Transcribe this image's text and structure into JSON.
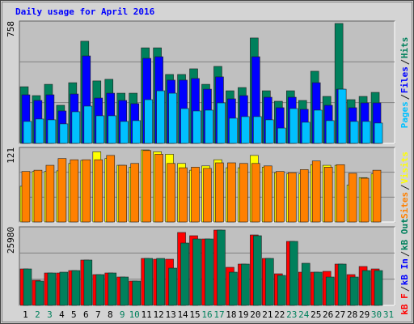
{
  "chart_data": [
    {
      "type": "bar",
      "title": "Daily usage for April 2016",
      "title_color": "#0000ff",
      "ylim": [
        0,
        758
      ],
      "yticks": [
        758
      ],
      "grid": true,
      "legend_order": "reverse",
      "series": [
        {
          "name": "Hits",
          "color": "#00805c",
          "values": [
            351,
            296,
            366,
            236,
            376,
            633,
            387,
            397,
            311,
            311,
            592,
            592,
            427,
            427,
            462,
            366,
            477,
            326,
            346,
            653,
            326,
            261,
            326,
            266,
            447,
            291,
            743,
            271,
            291,
            316,
            null
          ]
        },
        {
          "name": "Files",
          "color": "#0000ff",
          "values": [
            301,
            266,
            301,
            201,
            306,
            542,
            281,
            311,
            266,
            246,
            527,
            537,
            392,
            392,
            402,
            336,
            412,
            276,
            296,
            537,
            286,
            221,
            286,
            211,
            376,
            236,
            336,
            221,
            251,
            251,
            null
          ]
        },
        {
          "name": "Pages",
          "color": "#00c0ff",
          "values": [
            136,
            151,
            146,
            121,
            196,
            231,
            171,
            171,
            136,
            141,
            271,
            326,
            311,
            216,
            201,
            206,
            251,
            156,
            166,
            166,
            146,
            95,
            216,
            131,
            206,
            141,
            336,
            136,
            136,
            126,
            null
          ]
        }
      ]
    },
    {
      "type": "bar",
      "ylim": [
        0,
        121
      ],
      "yticks": [
        121
      ],
      "grid": true,
      "legend_order": "reverse",
      "series": [
        {
          "name": "Visits",
          "color": "#ffff00",
          "values": [
            58,
            82,
            82,
            83,
            95,
            100,
            114,
            103,
            92,
            89,
            117,
            114,
            110,
            95,
            84,
            91,
            101,
            88,
            88,
            108,
            89,
            80,
            78,
            78,
            93,
            92,
            92,
            60,
            72,
            78,
            null
          ]
        },
        {
          "name": "Sites",
          "color": "#ff8000",
          "values": [
            82,
            84,
            92,
            103,
            101,
            101,
            101,
            108,
            92,
            95,
            116,
            110,
            95,
            88,
            89,
            87,
            96,
            96,
            95,
            95,
            91,
            82,
            80,
            85,
            99,
            89,
            93,
            79,
            71,
            84,
            null
          ]
        }
      ]
    },
    {
      "type": "bar",
      "ylim": [
        0,
        25980
      ],
      "yticks": [
        25980
      ],
      "grid": true,
      "legend_order": "forward",
      "categories": [
        "1",
        "2",
        "3",
        "4",
        "5",
        "6",
        "7",
        "8",
        "9",
        "10",
        "11",
        "12",
        "13",
        "14",
        "15",
        "16",
        "17",
        "18",
        "19",
        "20",
        "21",
        "22",
        "23",
        "24",
        "25",
        "26",
        "27",
        "28",
        "29",
        "30",
        "31"
      ],
      "category_colors": [
        "#000000",
        "#00805c",
        "#00805c",
        "#000000",
        "#000000",
        "#000000",
        "#000000",
        "#000000",
        "#00805c",
        "#00805c",
        "#000000",
        "#000000",
        "#000000",
        "#000000",
        "#000000",
        "#00805c",
        "#00805c",
        "#000000",
        "#000000",
        "#000000",
        "#000000",
        "#000000",
        "#00805c",
        "#00805c",
        "#000000",
        "#000000",
        "#000000",
        "#000000",
        "#000000",
        "#00805c",
        "#00805c"
      ],
      "series": [
        {
          "name": "kB F",
          "color": "#ff0000",
          "values": [
            12051,
            8302,
            10712,
            10712,
            11515,
            14997,
            10176,
            10712,
            9373,
            8034,
            15532,
            15265,
            15265,
            24102,
            23031,
            21960,
            24905,
            12587,
            13658,
            23299,
            15532,
            10444,
            21156,
            10980,
            10980,
            11248,
            13658,
            10176,
            12854,
            12051,
            null
          ]
        },
        {
          "name": "kB In",
          "color": "#0000ff",
          "values": [
            0,
            0,
            0,
            0,
            0,
            0,
            0,
            0,
            0,
            0,
            0,
            0,
            0,
            0,
            0,
            0,
            0,
            0,
            0,
            0,
            0,
            0,
            0,
            0,
            0,
            0,
            0,
            0,
            0,
            0,
            null
          ]
        },
        {
          "name": "kB Out",
          "color": "#00805c",
          "values": [
            12051,
            8034,
            10712,
            10980,
            11515,
            14997,
            10176,
            10712,
            9373,
            8034,
            15532,
            15532,
            12319,
            20621,
            21960,
            21960,
            24905,
            10980,
            13658,
            23031,
            15532,
            9909,
            21156,
            13926,
            10980,
            9373,
            13658,
            9373,
            11515,
            11515,
            null
          ]
        }
      ]
    }
  ]
}
